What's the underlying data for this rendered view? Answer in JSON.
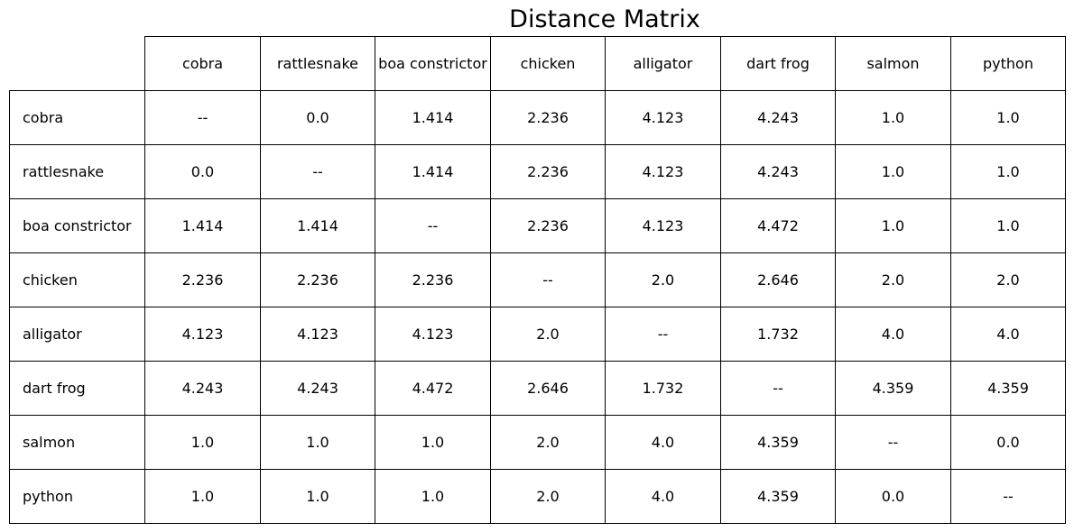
{
  "chart_data": {
    "type": "table",
    "title": "Distance Matrix",
    "columns": [
      "cobra",
      "rattlesnake",
      "boa constrictor",
      "chicken",
      "alligator",
      "dart frog",
      "salmon",
      "python"
    ],
    "rows": [
      {
        "label": "cobra",
        "values": [
          "--",
          "0.0",
          "1.414",
          "2.236",
          "4.123",
          "4.243",
          "1.0",
          "1.0"
        ]
      },
      {
        "label": "rattlesnake",
        "values": [
          "0.0",
          "--",
          "1.414",
          "2.236",
          "4.123",
          "4.243",
          "1.0",
          "1.0"
        ]
      },
      {
        "label": "boa constrictor",
        "values": [
          "1.414",
          "1.414",
          "--",
          "2.236",
          "4.123",
          "4.472",
          "1.0",
          "1.0"
        ]
      },
      {
        "label": "chicken",
        "values": [
          "2.236",
          "2.236",
          "2.236",
          "--",
          "2.0",
          "2.646",
          "2.0",
          "2.0"
        ]
      },
      {
        "label": "alligator",
        "values": [
          "4.123",
          "4.123",
          "4.123",
          "2.0",
          "--",
          "1.732",
          "4.0",
          "4.0"
        ]
      },
      {
        "label": "dart frog",
        "values": [
          "4.243",
          "4.243",
          "4.472",
          "2.646",
          "1.732",
          "--",
          "4.359",
          "4.359"
        ]
      },
      {
        "label": "salmon",
        "values": [
          "1.0",
          "1.0",
          "1.0",
          "2.0",
          "4.0",
          "4.359",
          "--",
          "0.0"
        ]
      },
      {
        "label": "python",
        "values": [
          "1.0",
          "1.0",
          "1.0",
          "2.0",
          "4.0",
          "4.359",
          "0.0",
          "--"
        ]
      }
    ]
  }
}
